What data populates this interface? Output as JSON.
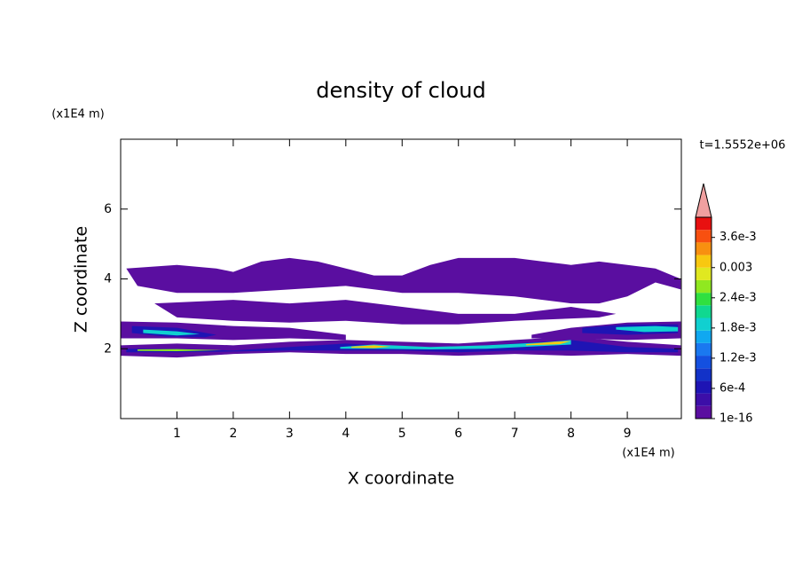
{
  "chart_data": {
    "type": "contour",
    "title": "density of cloud",
    "x_label": "X coordinate",
    "y_label": "Z coordinate",
    "x_unit": "(x1E4 m)",
    "y_unit": "(x1E4 m)",
    "time_label": "t=1.5552e+06",
    "xlim": [
      0,
      9.96
    ],
    "ylim": [
      0,
      8
    ],
    "xticks": [
      1,
      2,
      3,
      4,
      5,
      6,
      7,
      8,
      9
    ],
    "yticks": [
      2,
      4,
      6
    ],
    "clim": [
      0,
      0.004
    ],
    "levels": [
      1e-16,
      0.00025,
      0.0005,
      0.00075,
      0.001,
      0.00125,
      0.0015,
      0.00175,
      0.002,
      0.00225,
      0.0025,
      0.00275,
      0.003,
      0.00325,
      0.0035,
      0.00375
    ],
    "colors": [
      "#5a0ea0",
      "#3c0ea8",
      "#1e14b4",
      "#1232c8",
      "#1450e0",
      "#1a78f0",
      "#10a8f0",
      "#10d0d0",
      "#10d890",
      "#30e040",
      "#90e820",
      "#e0e820",
      "#f8c810",
      "#f89010",
      "#f85010",
      "#e81010"
    ],
    "extend_color": "#f0a0a0",
    "cticks": [
      1e-16,
      {
        "value": 0.0006,
        "label": "6e-4"
      },
      {
        "value": 0.0012,
        "label": "1.2e-3"
      },
      {
        "value": 0.0018,
        "label": "1.8e-3"
      },
      {
        "value": 0.0024,
        "label": "2.4e-3"
      },
      0.003,
      {
        "value": 0.0036,
        "label": "3.6e-3"
      }
    ],
    "contours": [
      {
        "level": 1e-16,
        "x": [
          0.1,
          1,
          1.7,
          2,
          2.5,
          3,
          3.5,
          4,
          4.5,
          5,
          5.5,
          6,
          6.5,
          7,
          7.5,
          8,
          8.5,
          9,
          9.5,
          9.95,
          9.95,
          9.5,
          9,
          8.5,
          8,
          7,
          6,
          5,
          4,
          3,
          2,
          1,
          0.3
        ],
        "z": [
          4.3,
          4.4,
          4.3,
          4.2,
          4.5,
          4.6,
          4.5,
          4.3,
          4.1,
          4.1,
          4.4,
          4.6,
          4.6,
          4.6,
          4.5,
          4.4,
          4.5,
          4.4,
          4.3,
          4.0,
          3.7,
          3.9,
          3.5,
          3.3,
          3.3,
          3.5,
          3.6,
          3.6,
          3.8,
          3.7,
          3.6,
          3.6,
          3.8
        ]
      },
      {
        "level": 1e-16,
        "x": [
          0.6,
          2,
          3,
          4,
          5,
          6,
          7,
          8,
          8.8,
          8.5,
          7,
          6,
          5,
          4,
          3,
          2,
          1
        ],
        "z": [
          3.3,
          3.4,
          3.3,
          3.4,
          3.2,
          3.0,
          3.0,
          3.2,
          3.0,
          2.9,
          2.8,
          2.7,
          2.7,
          2.8,
          2.75,
          2.8,
          2.9
        ]
      },
      {
        "level": 1e-16,
        "x": [
          0,
          1,
          2,
          3,
          4,
          4,
          3,
          2,
          1,
          0
        ],
        "z": [
          2.78,
          2.75,
          2.65,
          2.6,
          2.4,
          2.25,
          2.3,
          2.25,
          2.3,
          2.3
        ]
      },
      {
        "level": 1e-16,
        "x": [
          7.3,
          8,
          9,
          9.95,
          9.95,
          9,
          8,
          7.3
        ],
        "z": [
          2.4,
          2.6,
          2.75,
          2.78,
          2.3,
          2.25,
          2.3,
          2.3
        ]
      },
      {
        "level": 1e-16,
        "x": [
          0,
          1,
          2,
          3,
          4,
          5,
          6,
          7,
          8,
          9,
          9.95,
          9.95,
          9,
          8,
          7,
          6,
          5,
          4,
          3,
          2,
          1,
          0
        ],
        "z": [
          2.1,
          2.15,
          2.1,
          2.2,
          2.25,
          2.2,
          2.15,
          2.25,
          2.35,
          2.2,
          2.1,
          1.8,
          1.85,
          1.8,
          1.85,
          1.8,
          1.85,
          1.85,
          1.9,
          1.85,
          1.75,
          1.8
        ]
      },
      {
        "level": 0.0005,
        "x": [
          0.2,
          1,
          1.7,
          1.5,
          0.8,
          0.2
        ],
        "z": [
          2.65,
          2.6,
          2.4,
          2.33,
          2.35,
          2.45
        ]
      },
      {
        "level": 0.00175,
        "x": [
          0.4,
          1,
          1.4,
          1,
          0.4
        ],
        "z": [
          2.55,
          2.5,
          2.42,
          2.38,
          2.45
        ]
      },
      {
        "level": 0.0005,
        "x": [
          8.2,
          9,
          9.9,
          9.9,
          9,
          8.2
        ],
        "z": [
          2.6,
          2.7,
          2.7,
          2.45,
          2.4,
          2.45
        ]
      },
      {
        "level": 0.00175,
        "x": [
          8.8,
          9.5,
          9.9,
          9.9,
          9.3,
          8.8
        ],
        "z": [
          2.62,
          2.65,
          2.62,
          2.5,
          2.48,
          2.55
        ]
      },
      {
        "level": 0.0005,
        "x": [
          0.1,
          1,
          2,
          3,
          4,
          5,
          6,
          7,
          8,
          9,
          9.9,
          9.9,
          9,
          8,
          7,
          6,
          5,
          4,
          3,
          2,
          1,
          0.1
        ],
        "z": [
          2.0,
          2.0,
          1.95,
          2.05,
          2.15,
          2.05,
          2.05,
          2.15,
          2.25,
          2.05,
          2.0,
          1.9,
          1.9,
          1.95,
          1.95,
          1.9,
          1.95,
          1.95,
          1.95,
          1.92,
          1.9,
          1.9
        ]
      },
      {
        "level": 0.00175,
        "x": [
          3.9,
          4.5,
          5.5,
          6.5,
          7.5,
          8,
          8,
          7.5,
          6.5,
          5.5,
          4.5,
          3.9
        ],
        "z": [
          2.05,
          2.12,
          2.05,
          2.1,
          2.18,
          2.25,
          2.12,
          2.08,
          2.0,
          1.98,
          2.0,
          2.0
        ]
      },
      {
        "level": 0.003,
        "x": [
          4.1,
          4.5,
          4.8,
          4.5,
          4.1
        ],
        "z": [
          2.06,
          2.1,
          2.06,
          2.02,
          2.03
        ]
      },
      {
        "level": 0.003,
        "x": [
          7.2,
          7.7,
          8,
          7.8,
          7.2
        ],
        "z": [
          2.13,
          2.2,
          2.22,
          2.13,
          2.1
        ]
      },
      {
        "level": 0.0025,
        "x": [
          0.3,
          1,
          1.8,
          1,
          0.3
        ],
        "z": [
          1.98,
          1.99,
          1.96,
          1.93,
          1.94
        ]
      }
    ]
  }
}
